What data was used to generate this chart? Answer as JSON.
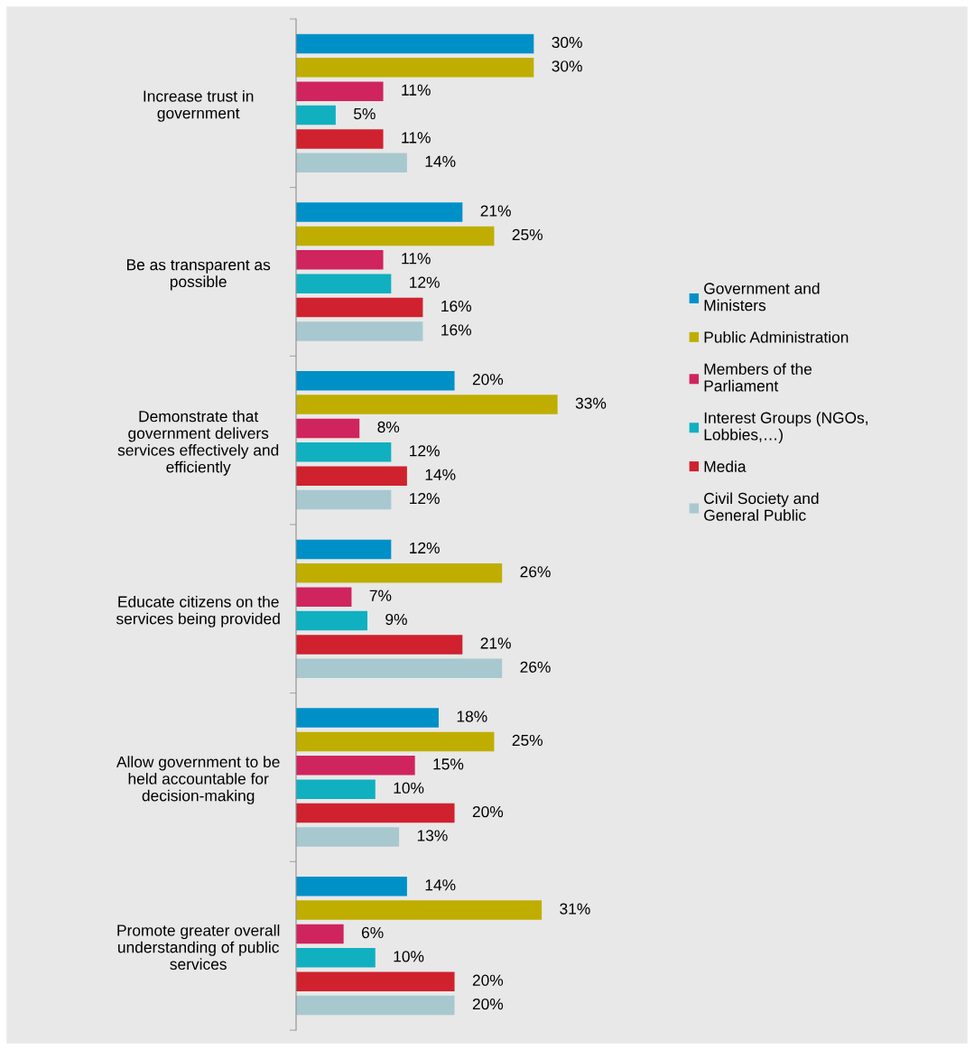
{
  "chart_data": {
    "type": "bar",
    "orientation": "horizontal",
    "categories": [
      "Increase trust in government",
      "Be as transparent as possible",
      "Demonstrate that government delivers services effectively and efficiently",
      "Educate citizens on the services being provided",
      "Allow government to be held accountable for decision-making",
      "Promote greater overall understanding of public services"
    ],
    "series": [
      {
        "name": "Government and Ministers",
        "color": "#0090c8",
        "values": [
          30,
          21,
          20,
          12,
          18,
          14
        ],
        "value_labels": [
          "30%",
          "21%",
          "20%",
          "12%",
          "18%",
          "14%"
        ]
      },
      {
        "name": "Public Administration",
        "color": "#bfae00",
        "values": [
          30,
          25,
          33,
          26,
          25,
          31
        ],
        "value_labels": [
          "30%",
          "25%",
          "33%",
          "26%",
          "25%",
          "31%"
        ]
      },
      {
        "name": "Members of the Parliament",
        "color": "#d0245e",
        "values": [
          11,
          11,
          8,
          7,
          15,
          6
        ],
        "value_labels": [
          "11%",
          "11%",
          "8%",
          "7%",
          "15%",
          "6%"
        ]
      },
      {
        "name": "Interest Groups (NGOs, Lobbies,…)",
        "color": "#10b0c0",
        "values": [
          5,
          12,
          12,
          9,
          10,
          10
        ],
        "value_labels": [
          "5%",
          "12%",
          "12%",
          "9%",
          "10%",
          "10%"
        ]
      },
      {
        "name": "Media",
        "color": "#d0212e",
        "values": [
          11,
          16,
          14,
          21,
          20,
          20
        ],
        "value_labels": [
          "11%",
          "16%",
          "14%",
          "21%",
          "20%",
          "20%"
        ]
      },
      {
        "name": "Civil Society and General Public",
        "color": "#a8c8d0",
        "values": [
          14,
          16,
          12,
          26,
          13,
          20
        ],
        "value_labels": [
          "14%",
          "16%",
          "12%",
          "26%",
          "13%",
          "20%"
        ]
      }
    ],
    "tick_labels": "y",
    "legend": "right",
    "grid": false
  }
}
